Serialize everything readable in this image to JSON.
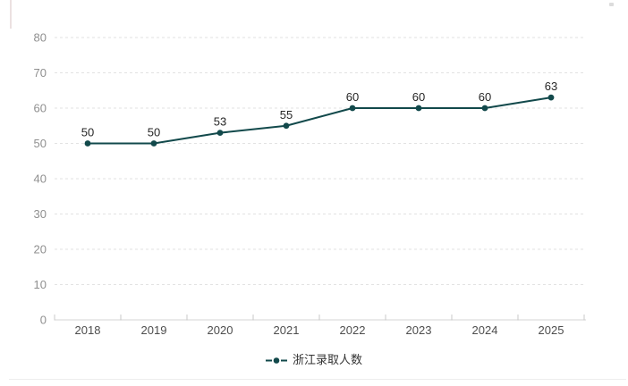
{
  "chart_data": {
    "type": "line",
    "title": "",
    "categories": [
      "2018",
      "2019",
      "2020",
      "2021",
      "2022",
      "2023",
      "2024",
      "2025"
    ],
    "series": [
      {
        "name": "浙江录取人数",
        "values": [
          50,
          50,
          53,
          55,
          60,
          60,
          60,
          63
        ],
        "color": "#12494b"
      }
    ],
    "data_labels_shown": true,
    "ylim": [
      0,
      80
    ],
    "yticks": [
      0,
      10,
      20,
      30,
      40,
      50,
      60,
      70,
      80
    ],
    "xlabel": "",
    "ylabel": "",
    "grid": "horizontal-dashed",
    "legend_position": "bottom-center",
    "colors": {
      "series": "#12494b",
      "grid": "#e2e2e2",
      "axis_line": "#d4d4d4",
      "axis_tick": "#c8c8c8",
      "y_tick_label": "#8f8f8f",
      "x_tick_label": "#4d4d4d",
      "data_label": "#262626",
      "legend_text": "#333333"
    }
  },
  "legend": {
    "items": [
      {
        "label": "浙江录取人数",
        "marker": "line-dot-icon",
        "color": "#12494b"
      }
    ]
  }
}
